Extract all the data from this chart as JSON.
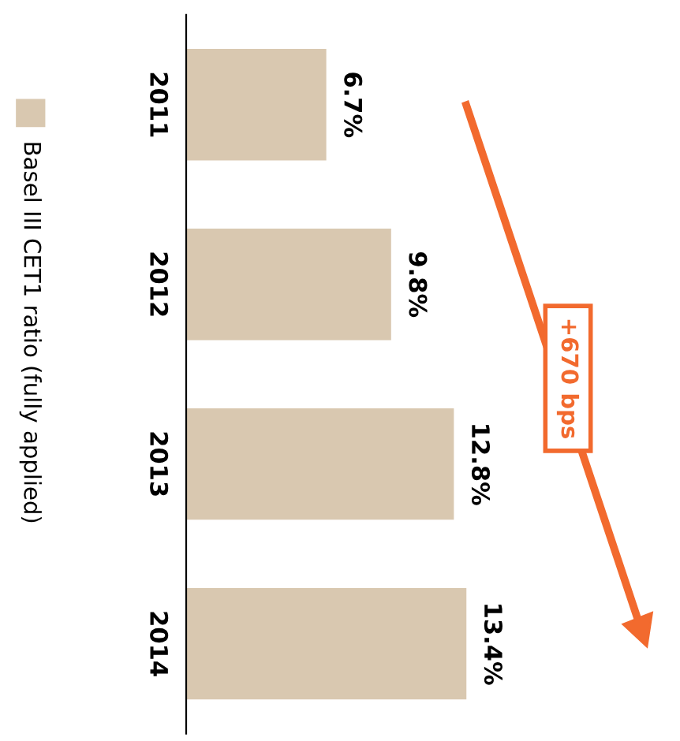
{
  "chart_data": {
    "type": "bar",
    "orientation": "horizontal",
    "categories": [
      "2011",
      "2012",
      "2013",
      "2014"
    ],
    "series": [
      {
        "name": "Basel III CET1 ratio (fully applied)",
        "color": "#d9c8b0",
        "values": [
          6.7,
          9.8,
          12.8,
          13.4
        ],
        "value_labels": [
          "6.7%",
          "9.8%",
          "12.8%",
          "13.4%"
        ]
      }
    ],
    "tick_labels": "y",
    "legend": "left",
    "grid": false,
    "annotations": [
      "+670 bps"
    ]
  }
}
